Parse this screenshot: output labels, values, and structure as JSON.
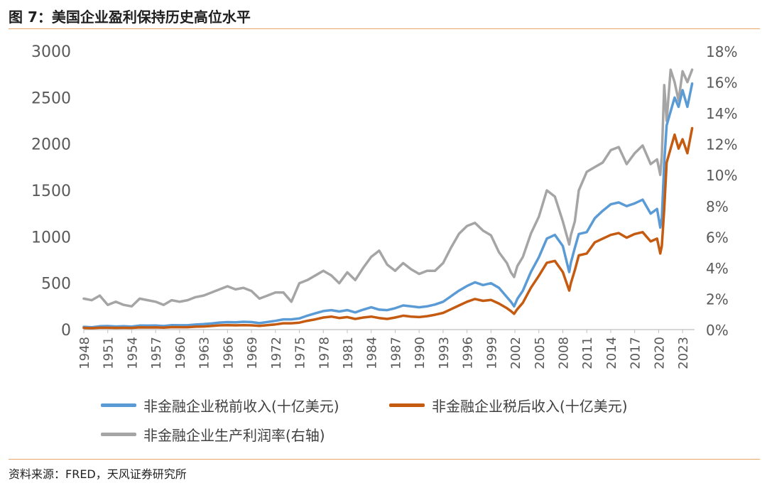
{
  "figure": {
    "title": "图 7：美国企业盈利保持历史高位水平",
    "source": "资料来源：FRED，天风证券研究所"
  },
  "colors": {
    "pretax": "#5b9bd5",
    "aftertax": "#c55a11",
    "margin": "#a5a5a5",
    "rule": "#e9a868"
  },
  "chart_data": {
    "type": "line",
    "x_label_ticks": [
      "1948",
      "1951",
      "1954",
      "1957",
      "1960",
      "1963",
      "1966",
      "1969",
      "1972",
      "1975",
      "1978",
      "1981",
      "1984",
      "1987",
      "1990",
      "1993",
      "1996",
      "1999",
      "2002",
      "2005",
      "2008",
      "2011",
      "2014",
      "2017",
      "2020",
      "2023"
    ],
    "x_range": [
      1948,
      2024.5
    ],
    "y_left": {
      "ticks": [
        "0",
        "500",
        "1000",
        "1500",
        "2000",
        "2500",
        "3000"
      ],
      "range": [
        0,
        3000
      ]
    },
    "y_right": {
      "ticks": [
        "0%",
        "2%",
        "4%",
        "6%",
        "8%",
        "10%",
        "12%",
        "14%",
        "16%",
        "18%"
      ],
      "range": [
        0,
        18
      ]
    },
    "series": [
      {
        "name": "非金融企业税前收入(十亿美元)",
        "axis": "left",
        "color": "#5b9bd5",
        "x": [
          1948,
          1949,
          1950,
          1951,
          1952,
          1953,
          1954,
          1955,
          1956,
          1957,
          1958,
          1959,
          1960,
          1961,
          1962,
          1963,
          1964,
          1965,
          1966,
          1967,
          1968,
          1969,
          1970,
          1971,
          1972,
          1973,
          1974,
          1975,
          1976,
          1977,
          1978,
          1979,
          1980,
          1981,
          1982,
          1983,
          1984,
          1985,
          1986,
          1987,
          1988,
          1989,
          1990,
          1991,
          1992,
          1993,
          1994,
          1995,
          1996,
          1997,
          1998,
          1999,
          2000,
          2001,
          2001.5,
          2001.9,
          2002.3,
          2003,
          2004,
          2005,
          2006,
          2007,
          2008,
          2008.8,
          2009,
          2009.5,
          2010,
          2011,
          2012,
          2013,
          2014,
          2015,
          2016,
          2017,
          2018,
          2019,
          2019.8,
          2020.2,
          2020.4,
          2020.7,
          2021,
          2021.5,
          2022,
          2022.5,
          2023,
          2023.6,
          2024.2
        ],
        "values": [
          30,
          25,
          36,
          38,
          34,
          36,
          33,
          44,
          43,
          44,
          38,
          48,
          47,
          47,
          54,
          59,
          66,
          76,
          80,
          78,
          84,
          81,
          70,
          82,
          94,
          110,
          110,
          120,
          150,
          175,
          200,
          210,
          195,
          210,
          185,
          215,
          240,
          215,
          210,
          230,
          260,
          250,
          240,
          250,
          270,
          300,
          360,
          420,
          470,
          510,
          480,
          500,
          450,
          350,
          300,
          250,
          330,
          420,
          620,
          780,
          980,
          1020,
          900,
          620,
          720,
          880,
          1030,
          1050,
          1200,
          1280,
          1350,
          1370,
          1330,
          1360,
          1400,
          1250,
          1300,
          1100,
          1200,
          1800,
          2200,
          2350,
          2500,
          2400,
          2580,
          2400,
          2650
        ]
      },
      {
        "name": "非金融企业税后收入(十亿美元)",
        "axis": "left",
        "color": "#c55a11",
        "x": [
          1948,
          1949,
          1950,
          1951,
          1952,
          1953,
          1954,
          1955,
          1956,
          1957,
          1958,
          1959,
          1960,
          1961,
          1962,
          1963,
          1964,
          1965,
          1966,
          1967,
          1968,
          1969,
          1970,
          1971,
          1972,
          1973,
          1974,
          1975,
          1976,
          1977,
          1978,
          1979,
          1980,
          1981,
          1982,
          1983,
          1984,
          1985,
          1986,
          1987,
          1988,
          1989,
          1990,
          1991,
          1992,
          1993,
          1994,
          1995,
          1996,
          1997,
          1998,
          1999,
          2000,
          2001,
          2001.5,
          2001.9,
          2002.3,
          2003,
          2004,
          2005,
          2006,
          2007,
          2008,
          2008.8,
          2009,
          2009.5,
          2010,
          2011,
          2012,
          2013,
          2014,
          2015,
          2016,
          2017,
          2018,
          2019,
          2019.8,
          2020.2,
          2020.4,
          2020.7,
          2021,
          2021.5,
          2022,
          2022.5,
          2023,
          2023.6,
          2024.2
        ],
        "values": [
          18,
          15,
          20,
          20,
          18,
          19,
          18,
          24,
          23,
          24,
          21,
          27,
          26,
          26,
          31,
          34,
          39,
          46,
          48,
          46,
          48,
          46,
          40,
          48,
          56,
          68,
          68,
          75,
          95,
          110,
          130,
          140,
          125,
          135,
          115,
          130,
          140,
          125,
          115,
          130,
          150,
          140,
          135,
          145,
          160,
          180,
          220,
          260,
          300,
          330,
          310,
          320,
          280,
          230,
          200,
          170,
          220,
          290,
          450,
          580,
          720,
          740,
          620,
          420,
          500,
          640,
          800,
          820,
          940,
          980,
          1020,
          1040,
          990,
          1030,
          1050,
          950,
          980,
          820,
          900,
          1300,
          1800,
          1950,
          2100,
          1950,
          2050,
          1900,
          2170
        ]
      },
      {
        "name": "非金融企业生产利润率(右轴)",
        "axis": "right",
        "color": "#a5a5a5",
        "x": [
          1948,
          1949,
          1950,
          1951,
          1952,
          1953,
          1954,
          1955,
          1956,
          1957,
          1958,
          1959,
          1960,
          1961,
          1962,
          1963,
          1964,
          1965,
          1966,
          1967,
          1968,
          1969,
          1970,
          1971,
          1972,
          1973,
          1974,
          1975,
          1976,
          1977,
          1978,
          1979,
          1980,
          1981,
          1982,
          1983,
          1984,
          1985,
          1986,
          1987,
          1988,
          1989,
          1990,
          1991,
          1992,
          1993,
          1994,
          1995,
          1996,
          1997,
          1998,
          1999,
          2000,
          2001,
          2001.5,
          2001.9,
          2002.3,
          2003,
          2004,
          2005,
          2006,
          2007,
          2008,
          2008.8,
          2009,
          2009.5,
          2010,
          2011,
          2012,
          2013,
          2014,
          2015,
          2016,
          2017,
          2018,
          2019,
          2019.8,
          2020.2,
          2020.4,
          2020.7,
          2021,
          2021.5,
          2022,
          2022.5,
          2023,
          2023.6,
          2024.2
        ],
        "values": [
          2.0,
          1.9,
          2.2,
          1.6,
          1.8,
          1.6,
          1.5,
          2.0,
          1.9,
          1.8,
          1.6,
          1.9,
          1.8,
          1.9,
          2.1,
          2.2,
          2.4,
          2.6,
          2.8,
          2.6,
          2.7,
          2.5,
          2.0,
          2.2,
          2.4,
          2.4,
          1.8,
          3.0,
          3.2,
          3.5,
          3.8,
          3.5,
          3.0,
          3.7,
          3.2,
          4.0,
          4.7,
          5.1,
          4.2,
          3.8,
          4.3,
          3.9,
          3.6,
          3.8,
          3.8,
          4.3,
          5.3,
          6.2,
          6.7,
          6.9,
          6.4,
          6.1,
          5.0,
          4.3,
          3.7,
          3.4,
          4.1,
          4.7,
          6.2,
          7.3,
          9.0,
          8.6,
          7.0,
          5.5,
          6.1,
          7.0,
          9.0,
          10.2,
          10.5,
          10.8,
          11.6,
          11.8,
          10.7,
          11.4,
          11.9,
          10.7,
          11.0,
          10.0,
          11.2,
          15.8,
          13.5,
          16.8,
          16.0,
          14.8,
          16.7,
          16.0,
          16.8
        ]
      }
    ]
  }
}
